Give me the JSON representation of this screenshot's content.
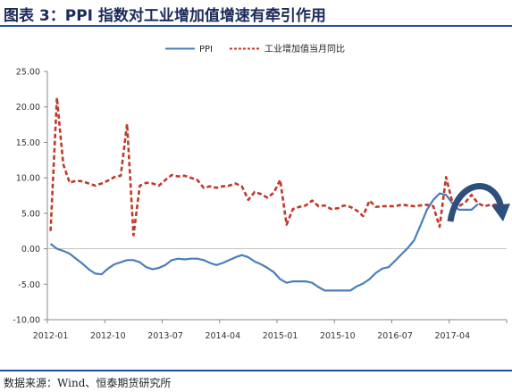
{
  "title": "图表 3：PPI 指数对工业增加值增速有牵引作用",
  "source": "数据来源：Wind、恒泰期货研究所",
  "colors": {
    "ppi": "#4a7ebb",
    "ip": "#c0392b",
    "arrow": "#2e4e7e",
    "frame": "#1f4e9c"
  },
  "chart_data": {
    "type": "line",
    "ylim": [
      -10,
      25
    ],
    "yticks": [
      "25.00",
      "20.00",
      "15.00",
      "10.00",
      "5.00",
      "0.00",
      "-5.00",
      "-10.00"
    ],
    "xlabels": [
      "2012-01",
      "2012-10",
      "2013-07",
      "2014-04",
      "2015-01",
      "2015-10",
      "2016-07",
      "2017-04"
    ],
    "legend": [
      "PPI",
      "工业增加值当月同比"
    ],
    "legend_position": "top",
    "annotation": "curved-arrow-right",
    "series": [
      {
        "name": "PPI",
        "x": [
          0,
          1,
          2,
          3,
          4,
          5,
          6,
          7,
          8,
          9,
          10,
          11,
          12,
          13,
          14,
          15,
          16,
          17,
          18,
          19,
          20,
          21,
          22,
          23,
          24,
          25,
          26,
          27,
          28,
          29,
          30,
          31,
          32,
          33,
          34,
          35,
          36,
          37,
          38,
          39,
          40,
          41,
          42,
          43,
          44,
          45,
          46,
          47,
          48,
          49,
          50,
          51,
          52,
          53,
          54,
          55,
          56,
          57,
          58,
          59,
          60,
          61,
          62,
          63,
          64,
          65,
          66,
          67
        ],
        "values": [
          0.7,
          0.0,
          -0.3,
          -0.7,
          -1.4,
          -2.1,
          -2.9,
          -3.5,
          -3.6,
          -2.8,
          -2.2,
          -1.9,
          -1.6,
          -1.6,
          -1.9,
          -2.6,
          -2.9,
          -2.7,
          -2.3,
          -1.6,
          -1.4,
          -1.5,
          -1.4,
          -1.4,
          -1.6,
          -2.0,
          -2.3,
          -2.0,
          -1.6,
          -1.2,
          -0.9,
          -1.2,
          -1.8,
          -2.2,
          -2.7,
          -3.3,
          -4.3,
          -4.8,
          -4.6,
          -4.6,
          -4.6,
          -4.8,
          -5.4,
          -5.9,
          -5.9,
          -5.9,
          -5.9,
          -5.9,
          -5.3,
          -4.9,
          -4.3,
          -3.4,
          -2.8,
          -2.6,
          -1.7,
          -0.8,
          0.1,
          1.2,
          3.3,
          5.5,
          6.9,
          7.8,
          7.6,
          6.4,
          5.5,
          5.5,
          5.5,
          6.3
        ]
      },
      {
        "name": "工业增加值当月同比",
        "x": [
          0,
          1,
          2,
          3,
          4,
          5,
          6,
          7,
          8,
          9,
          10,
          11,
          12,
          13,
          14,
          15,
          16,
          17,
          18,
          19,
          20,
          21,
          22,
          23,
          24,
          25,
          26,
          27,
          28,
          29,
          30,
          31,
          32,
          33,
          34,
          35,
          36,
          37,
          38,
          39,
          40,
          41,
          42,
          43,
          44,
          45,
          46,
          47,
          48,
          49,
          50,
          51,
          52,
          53,
          54,
          55,
          56,
          57,
          58,
          59,
          60,
          61,
          62,
          63,
          64,
          65,
          66,
          67,
          68,
          69,
          70,
          71
        ],
        "values": [
          2.5,
          21.3,
          11.9,
          9.3,
          9.6,
          9.5,
          9.2,
          8.9,
          9.2,
          9.6,
          10.1,
          10.3,
          17.6,
          1.9,
          8.9,
          9.3,
          9.2,
          8.9,
          9.7,
          10.4,
          10.2,
          10.3,
          10.0,
          9.7,
          8.6,
          8.8,
          8.6,
          8.8,
          8.9,
          9.2,
          8.8,
          6.9,
          8.0,
          7.7,
          7.2,
          7.9,
          9.7,
          3.4,
          5.6,
          5.9,
          6.1,
          6.8,
          6.0,
          6.1,
          5.6,
          5.7,
          6.1,
          5.9,
          5.4,
          4.6,
          6.8,
          5.9,
          6.0,
          6.0,
          6.0,
          6.2,
          6.1,
          6.0,
          6.1,
          6.2,
          6.0,
          3.1,
          10.1,
          6.5,
          6.0,
          6.5,
          7.6,
          6.4,
          6.0,
          6.2,
          6.2,
          6.0
        ]
      }
    ]
  }
}
